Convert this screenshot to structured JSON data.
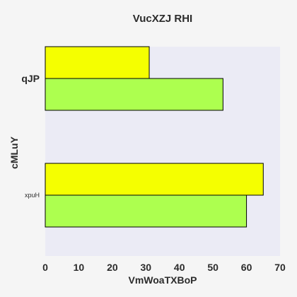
{
  "chart_data": {
    "type": "bar",
    "orientation": "horizontal",
    "title": "VucXZJ RHI",
    "xlabel": "VmWoaTXBoP",
    "ylabel": "cMLuY",
    "categories": [
      "qJP",
      "xpuH"
    ],
    "series": [
      {
        "values": [
          31,
          65
        ],
        "color": "#f5ff00"
      },
      {
        "values": [
          53,
          60
        ],
        "color": "#adff4f"
      }
    ],
    "xlim": [
      0,
      70
    ],
    "xticks": [
      0,
      10,
      20,
      30,
      40,
      50,
      60,
      70
    ],
    "grid": false,
    "plot_background": "#ebebf5",
    "page_background": "#f5f5f5"
  }
}
